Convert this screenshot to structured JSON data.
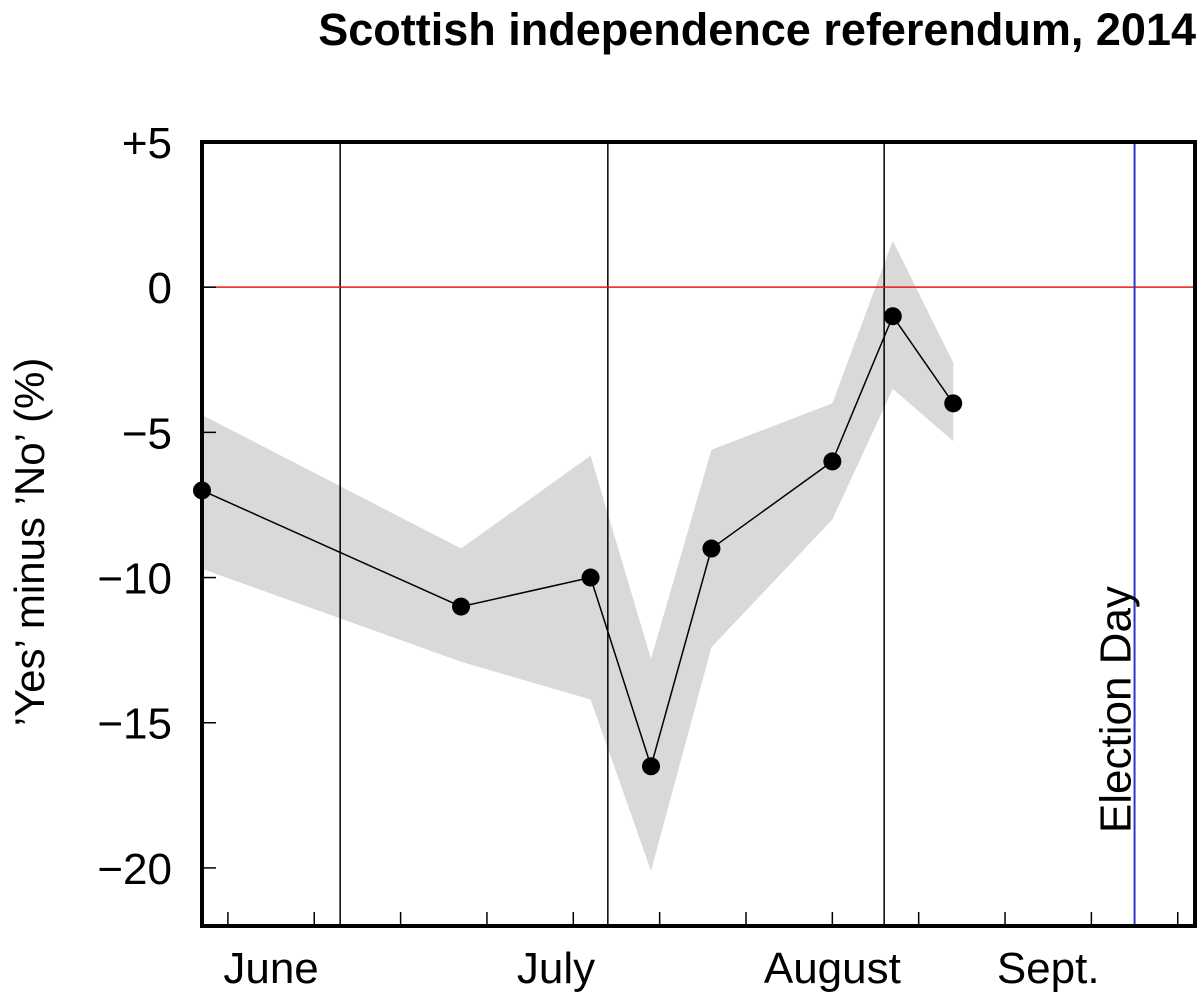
{
  "chart_data": {
    "type": "line",
    "title": "Scottish independence referendum, 2014",
    "xlabel": "",
    "ylabel": "’Yes’ minus ’No’ (%)",
    "ylim": [
      -22,
      5
    ],
    "y_ticks": [
      {
        "value": 5,
        "label": "+5"
      },
      {
        "value": 0,
        "label": "0"
      },
      {
        "value": -5,
        "label": "−5"
      },
      {
        "value": -10,
        "label": "−10"
      },
      {
        "value": -15,
        "label": "−15"
      },
      {
        "value": -20,
        "label": "−20"
      }
    ],
    "xlim": [
      "2014-06-01",
      "2014-09-24"
    ],
    "x_month_labels": [
      {
        "label": "June",
        "date": "2014-06-09"
      },
      {
        "label": "July",
        "date": "2014-07-12"
      },
      {
        "label": "August",
        "date": "2014-08-13"
      },
      {
        "label": "Sept.",
        "date": "2014-09-07"
      }
    ],
    "x_minor_ticks": [
      "2014-06-04",
      "2014-06-14",
      "2014-06-24",
      "2014-07-04",
      "2014-07-14",
      "2014-07-24",
      "2014-08-03",
      "2014-08-13",
      "2014-08-23",
      "2014-09-02",
      "2014-09-12",
      "2014-09-22"
    ],
    "month_dividers": [
      "2014-06-17",
      "2014-07-18",
      "2014-08-19"
    ],
    "series": [
      {
        "values": [
          {
            "x": "2014-06-01",
            "y": -7,
            "lower": -9.7,
            "upper": -4.4
          },
          {
            "x": "2014-07-01",
            "y": -11,
            "lower": -12.9,
            "upper": -9.0
          },
          {
            "x": "2014-07-16",
            "y": -10,
            "lower": -14.2,
            "upper": -5.8
          },
          {
            "x": "2014-07-23",
            "y": -16.5,
            "lower": -20.1,
            "upper": -12.8
          },
          {
            "x": "2014-07-30",
            "y": -9,
            "lower": -12.4,
            "upper": -5.6
          },
          {
            "x": "2014-08-13",
            "y": -6,
            "lower": -8.0,
            "upper": -4.0
          },
          {
            "x": "2014-08-20",
            "y": -1,
            "lower": -3.5,
            "upper": 1.6
          },
          {
            "x": "2014-08-27",
            "y": -4,
            "lower": -5.3,
            "upper": -2.6
          }
        ],
        "color": "#000000",
        "band_color": "#d9d9d9"
      }
    ],
    "reference_line": {
      "y": 0,
      "color": "#e8191a"
    },
    "event_marker": {
      "date": "2014-09-17",
      "label": "Election Day",
      "color": "#3333cc"
    },
    "grid": false,
    "legend": "none"
  }
}
